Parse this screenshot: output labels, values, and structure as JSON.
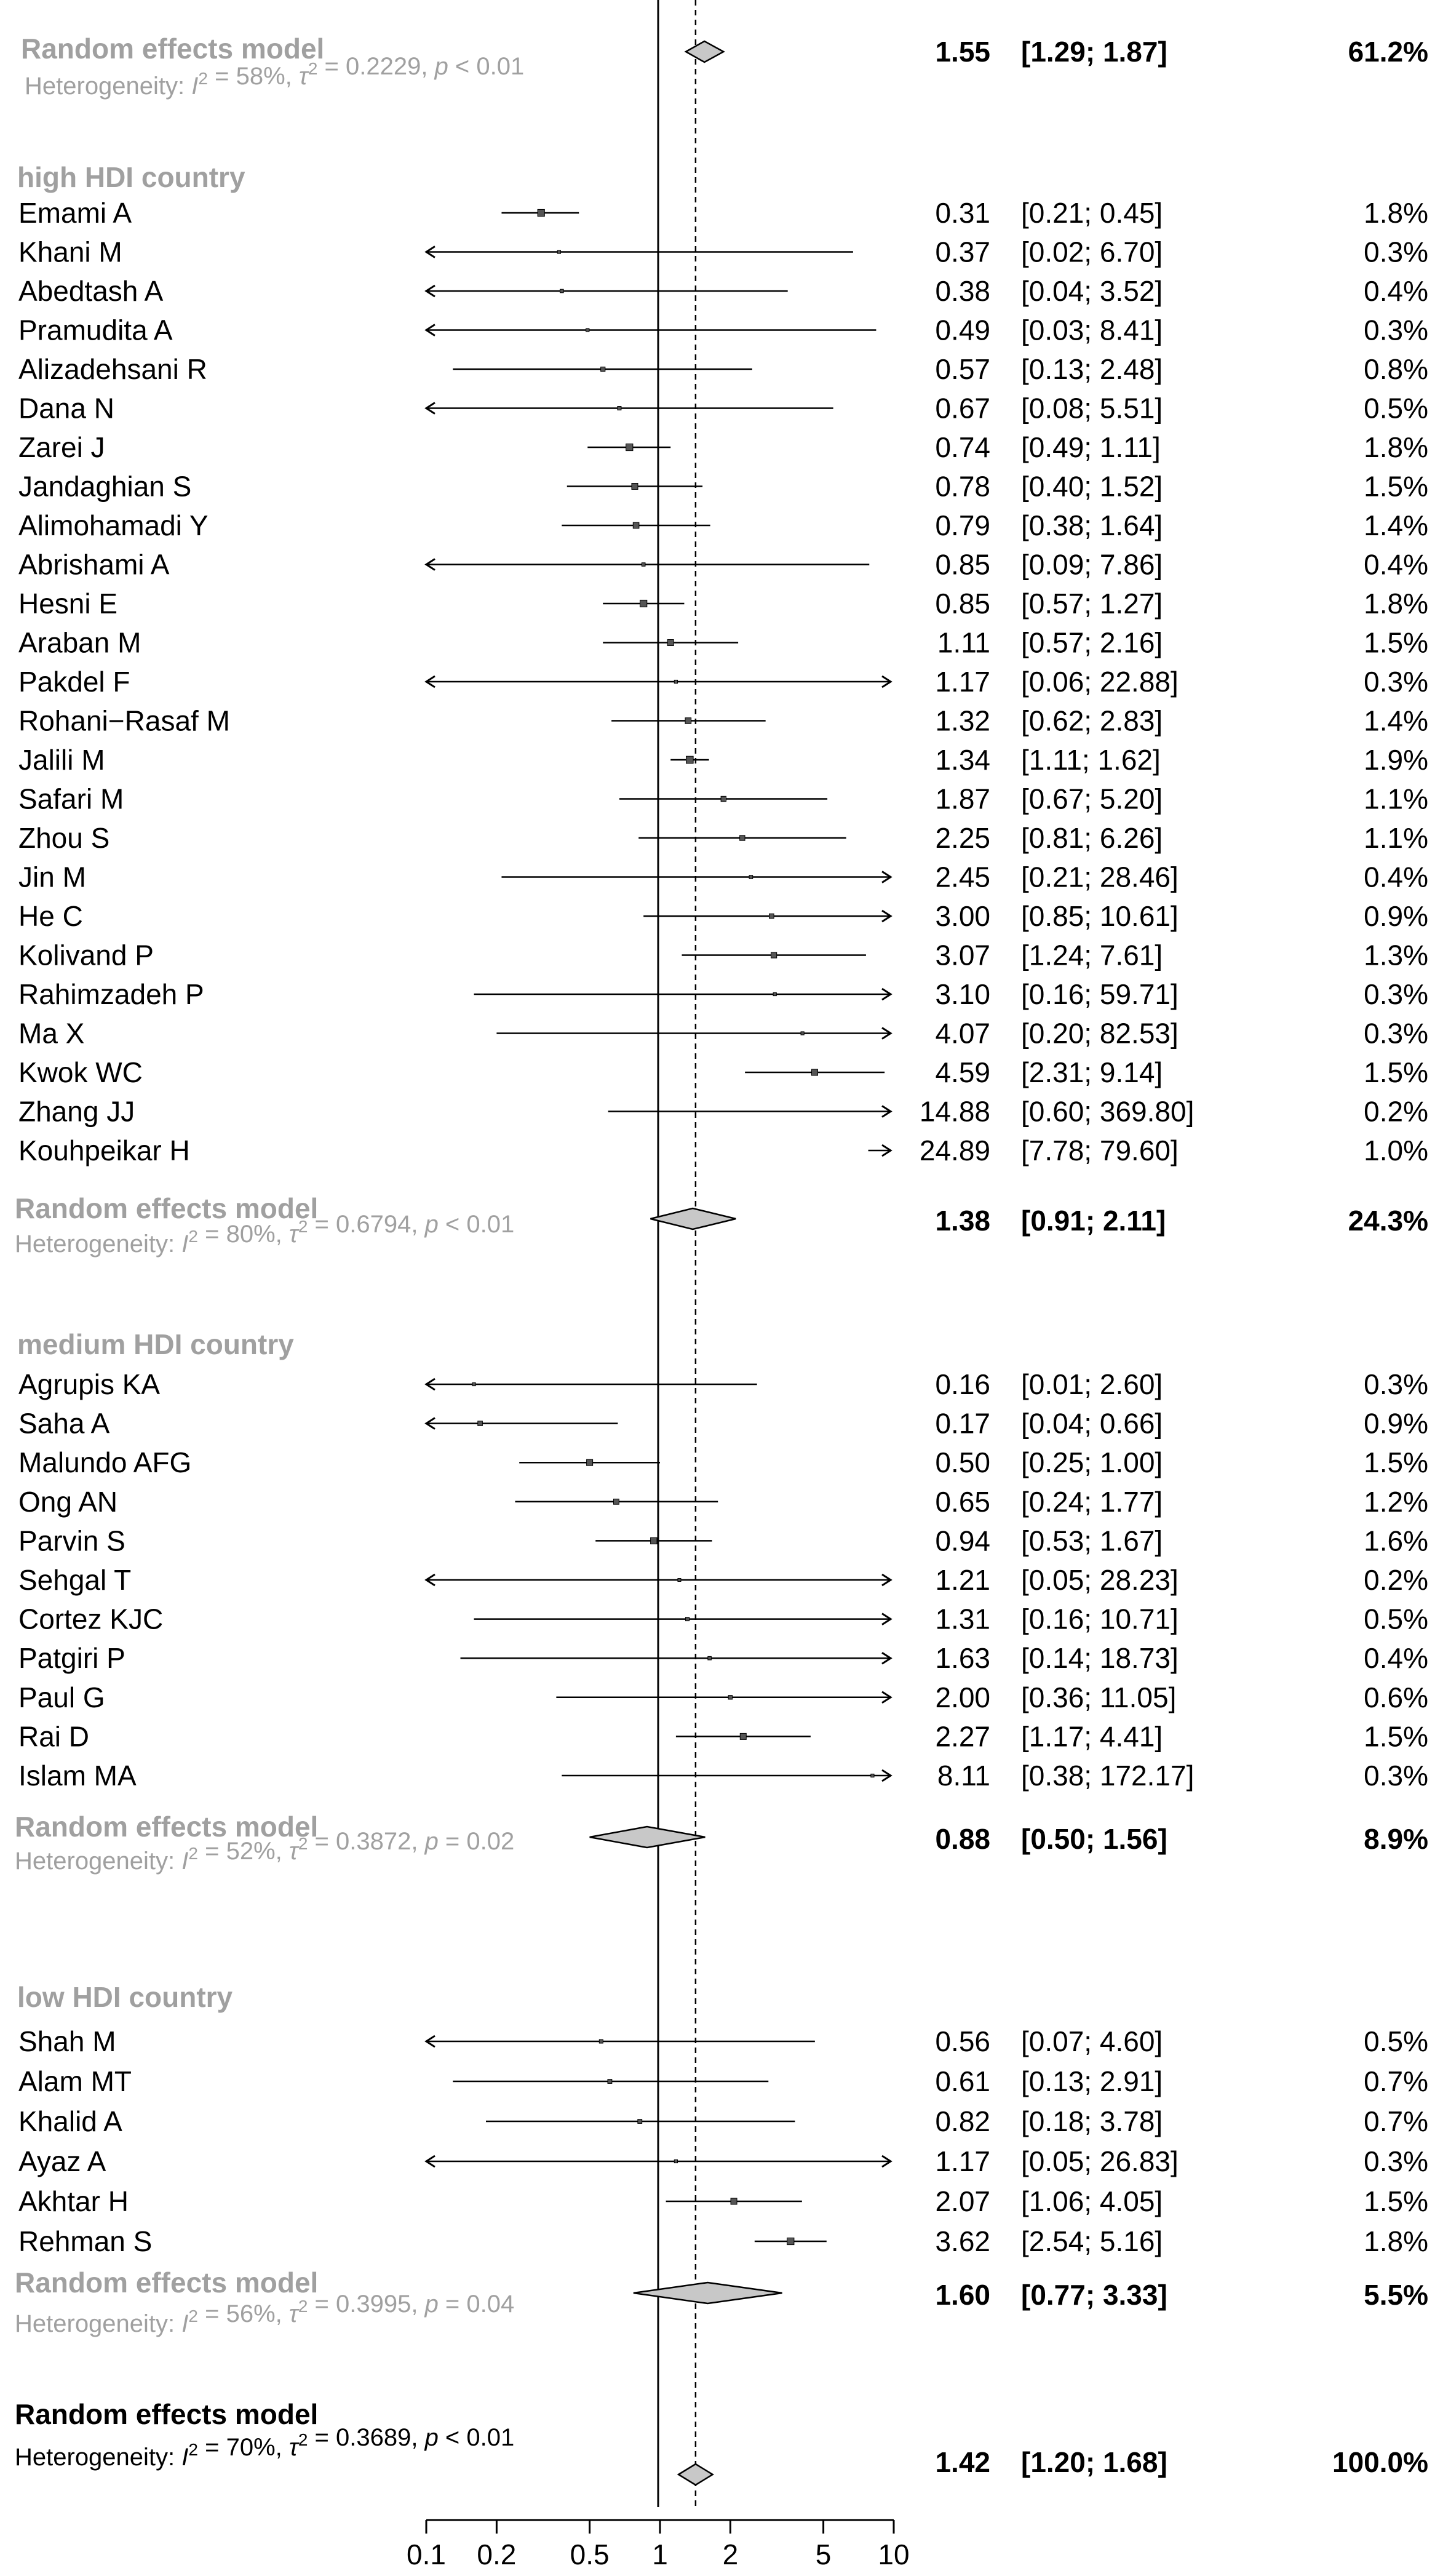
{
  "chart_data": {
    "type": "forest",
    "x_scale": "log",
    "x_ticks": [
      "0.1",
      "0.2",
      "0.5",
      "1",
      "2",
      "5",
      "10"
    ],
    "null_line": 1,
    "top_summary": {
      "label": "Random effects model",
      "heterogeneity": "Heterogeneity: I² = 58%, τ² = 0.2229, p < 0.01",
      "est_text": "1.55",
      "ci_text": "[1.29;  1.87]",
      "weight": "61.2%",
      "est": 1.55,
      "lo": 1.29,
      "hi": 1.87
    },
    "groups": [
      {
        "name": "high HDI country",
        "studies": [
          {
            "label": "Emami A",
            "est": 0.31,
            "lo": 0.21,
            "hi": 0.45,
            "est_text": "0.31",
            "ci_text": "[0.21;  0.45]",
            "weight": "1.8%"
          },
          {
            "label": "Khani M",
            "est": 0.37,
            "lo": 0.02,
            "hi": 6.7,
            "est_text": "0.37",
            "ci_text": "[0.02;  6.70]",
            "weight": "0.3%"
          },
          {
            "label": "Abedtash A",
            "est": 0.38,
            "lo": 0.04,
            "hi": 3.52,
            "est_text": "0.38",
            "ci_text": "[0.04;  3.52]",
            "weight": "0.4%"
          },
          {
            "label": "Pramudita A",
            "est": 0.49,
            "lo": 0.03,
            "hi": 8.41,
            "est_text": "0.49",
            "ci_text": "[0.03;  8.41]",
            "weight": "0.3%"
          },
          {
            "label": "Alizadehsani R",
            "est": 0.57,
            "lo": 0.13,
            "hi": 2.48,
            "est_text": "0.57",
            "ci_text": "[0.13;  2.48]",
            "weight": "0.8%"
          },
          {
            "label": "Dana N",
            "est": 0.67,
            "lo": 0.08,
            "hi": 5.51,
            "est_text": "0.67",
            "ci_text": "[0.08;  5.51]",
            "weight": "0.5%"
          },
          {
            "label": "Zarei J",
            "est": 0.74,
            "lo": 0.49,
            "hi": 1.11,
            "est_text": "0.74",
            "ci_text": "[0.49;  1.11]",
            "weight": "1.8%"
          },
          {
            "label": "Jandaghian S",
            "est": 0.78,
            "lo": 0.4,
            "hi": 1.52,
            "est_text": "0.78",
            "ci_text": "[0.40;  1.52]",
            "weight": "1.5%"
          },
          {
            "label": "Alimohamadi Y",
            "est": 0.79,
            "lo": 0.38,
            "hi": 1.64,
            "est_text": "0.79",
            "ci_text": "[0.38;  1.64]",
            "weight": "1.4%"
          },
          {
            "label": "Abrishami A",
            "est": 0.85,
            "lo": 0.09,
            "hi": 7.86,
            "est_text": "0.85",
            "ci_text": "[0.09;  7.86]",
            "weight": "0.4%"
          },
          {
            "label": "Hesni E",
            "est": 0.85,
            "lo": 0.57,
            "hi": 1.27,
            "est_text": "0.85",
            "ci_text": "[0.57;  1.27]",
            "weight": "1.8%"
          },
          {
            "label": "Araban M",
            "est": 1.11,
            "lo": 0.57,
            "hi": 2.16,
            "est_text": "1.11",
            "ci_text": "[0.57;  2.16]",
            "weight": "1.5%"
          },
          {
            "label": "Pakdel F",
            "est": 1.17,
            "lo": 0.06,
            "hi": 22.88,
            "est_text": "1.17",
            "ci_text": "[0.06; 22.88]",
            "weight": "0.3%"
          },
          {
            "label": "Rohani−Rasaf M",
            "est": 1.32,
            "lo": 0.62,
            "hi": 2.83,
            "est_text": "1.32",
            "ci_text": "[0.62;  2.83]",
            "weight": "1.4%"
          },
          {
            "label": "Jalili M",
            "est": 1.34,
            "lo": 1.11,
            "hi": 1.62,
            "est_text": "1.34",
            "ci_text": "[1.11;  1.62]",
            "weight": "1.9%"
          },
          {
            "label": "Safari M",
            "est": 1.87,
            "lo": 0.67,
            "hi": 5.2,
            "est_text": "1.87",
            "ci_text": "[0.67;  5.20]",
            "weight": "1.1%"
          },
          {
            "label": "Zhou S",
            "est": 2.25,
            "lo": 0.81,
            "hi": 6.26,
            "est_text": "2.25",
            "ci_text": "[0.81;  6.26]",
            "weight": "1.1%"
          },
          {
            "label": "Jin M",
            "est": 2.45,
            "lo": 0.21,
            "hi": 28.46,
            "est_text": "2.45",
            "ci_text": "[0.21; 28.46]",
            "weight": "0.4%"
          },
          {
            "label": "He C",
            "est": 3.0,
            "lo": 0.85,
            "hi": 10.61,
            "est_text": "3.00",
            "ci_text": "[0.85; 10.61]",
            "weight": "0.9%"
          },
          {
            "label": "Kolivand P",
            "est": 3.07,
            "lo": 1.24,
            "hi": 7.61,
            "est_text": "3.07",
            "ci_text": "[1.24;  7.61]",
            "weight": "1.3%"
          },
          {
            "label": "Rahimzadeh P",
            "est": 3.1,
            "lo": 0.16,
            "hi": 59.71,
            "est_text": "3.10",
            "ci_text": "[0.16; 59.71]",
            "weight": "0.3%"
          },
          {
            "label": "Ma X",
            "est": 4.07,
            "lo": 0.2,
            "hi": 82.53,
            "est_text": "4.07",
            "ci_text": "[0.20; 82.53]",
            "weight": "0.3%"
          },
          {
            "label": "Kwok WC",
            "est": 4.59,
            "lo": 2.31,
            "hi": 9.14,
            "est_text": "4.59",
            "ci_text": "[2.31;  9.14]",
            "weight": "1.5%"
          },
          {
            "label": "Zhang JJ",
            "est": 14.88,
            "lo": 0.6,
            "hi": 369.8,
            "est_text": "14.88",
            "ci_text": "[0.60; 369.80]",
            "weight": "0.2%"
          },
          {
            "label": "Kouhpeikar H",
            "est": 24.89,
            "lo": 7.78,
            "hi": 79.6,
            "est_text": "24.89",
            "ci_text": "[7.78; 79.60]",
            "weight": "1.0%"
          }
        ],
        "summary": {
          "label": "Random effects model",
          "heterogeneity": "Heterogeneity: I² = 80%, τ² = 0.6794, p < 0.01",
          "est_text": "1.38",
          "ci_text": "[0.91;  2.11]",
          "weight": "24.3%",
          "est": 1.38,
          "lo": 0.91,
          "hi": 2.11
        }
      },
      {
        "name": "medium HDI country",
        "studies": [
          {
            "label": "Agrupis KA",
            "est": 0.16,
            "lo": 0.01,
            "hi": 2.6,
            "est_text": "0.16",
            "ci_text": "[0.01;  2.60]",
            "weight": "0.3%"
          },
          {
            "label": "Saha A",
            "est": 0.17,
            "lo": 0.04,
            "hi": 0.66,
            "est_text": "0.17",
            "ci_text": "[0.04;  0.66]",
            "weight": "0.9%"
          },
          {
            "label": "Malundo AFG",
            "est": 0.5,
            "lo": 0.25,
            "hi": 1.0,
            "est_text": "0.50",
            "ci_text": "[0.25;  1.00]",
            "weight": "1.5%"
          },
          {
            "label": "Ong AN",
            "est": 0.65,
            "lo": 0.24,
            "hi": 1.77,
            "est_text": "0.65",
            "ci_text": "[0.24;  1.77]",
            "weight": "1.2%"
          },
          {
            "label": "Parvin S",
            "est": 0.94,
            "lo": 0.53,
            "hi": 1.67,
            "est_text": "0.94",
            "ci_text": "[0.53;  1.67]",
            "weight": "1.6%"
          },
          {
            "label": "Sehgal T",
            "est": 1.21,
            "lo": 0.05,
            "hi": 28.23,
            "est_text": "1.21",
            "ci_text": "[0.05; 28.23]",
            "weight": "0.2%"
          },
          {
            "label": "Cortez KJC",
            "est": 1.31,
            "lo": 0.16,
            "hi": 10.71,
            "est_text": "1.31",
            "ci_text": "[0.16; 10.71]",
            "weight": "0.5%"
          },
          {
            "label": "Patgiri P",
            "est": 1.63,
            "lo": 0.14,
            "hi": 18.73,
            "est_text": "1.63",
            "ci_text": "[0.14; 18.73]",
            "weight": "0.4%"
          },
          {
            "label": "Paul G",
            "est": 2.0,
            "lo": 0.36,
            "hi": 11.05,
            "est_text": "2.00",
            "ci_text": "[0.36; 11.05]",
            "weight": "0.6%"
          },
          {
            "label": "Rai D",
            "est": 2.27,
            "lo": 1.17,
            "hi": 4.41,
            "est_text": "2.27",
            "ci_text": "[1.17;  4.41]",
            "weight": "1.5%"
          },
          {
            "label": "Islam MA",
            "est": 8.11,
            "lo": 0.38,
            "hi": 172.17,
            "est_text": "8.11",
            "ci_text": "[0.38; 172.17]",
            "weight": "0.3%"
          }
        ],
        "summary": {
          "label": "Random effects model",
          "heterogeneity": "Heterogeneity: I² = 52%, τ² = 0.3872, p = 0.02",
          "est_text": "0.88",
          "ci_text": "[0.50;  1.56]",
          "weight": "8.9%",
          "est": 0.88,
          "lo": 0.5,
          "hi": 1.56
        }
      },
      {
        "name": "low HDI country",
        "studies": [
          {
            "label": "Shah M",
            "est": 0.56,
            "lo": 0.07,
            "hi": 4.6,
            "est_text": "0.56",
            "ci_text": "[0.07;  4.60]",
            "weight": "0.5%"
          },
          {
            "label": "Alam MT",
            "est": 0.61,
            "lo": 0.13,
            "hi": 2.91,
            "est_text": "0.61",
            "ci_text": "[0.13;  2.91]",
            "weight": "0.7%"
          },
          {
            "label": "Khalid A",
            "est": 0.82,
            "lo": 0.18,
            "hi": 3.78,
            "est_text": "0.82",
            "ci_text": "[0.18;  3.78]",
            "weight": "0.7%"
          },
          {
            "label": "Ayaz A",
            "est": 1.17,
            "lo": 0.05,
            "hi": 26.83,
            "est_text": "1.17",
            "ci_text": "[0.05; 26.83]",
            "weight": "0.3%"
          },
          {
            "label": "Akhtar H",
            "est": 2.07,
            "lo": 1.06,
            "hi": 4.05,
            "est_text": "2.07",
            "ci_text": "[1.06;  4.05]",
            "weight": "1.5%"
          },
          {
            "label": "Rehman S",
            "est": 3.62,
            "lo": 2.54,
            "hi": 5.16,
            "est_text": "3.62",
            "ci_text": "[2.54;  5.16]",
            "weight": "1.8%"
          }
        ],
        "summary": {
          "label": "Random effects model",
          "heterogeneity": "Heterogeneity: I² = 56%, τ² = 0.3995, p = 0.04",
          "est_text": "1.60",
          "ci_text": "[0.77;  3.33]",
          "weight": "5.5%",
          "est": 1.6,
          "lo": 0.77,
          "hi": 3.33
        }
      }
    ],
    "overall": {
      "label": "Random effects model",
      "heterogeneity": "Heterogeneity: I² = 70%, τ² = 0.3689, p < 0.01",
      "est_text": "1.42",
      "ci_text": "[1.20;  1.68]",
      "weight": "100.0%",
      "est": 1.42,
      "lo": 1.2,
      "hi": 1.68
    }
  }
}
